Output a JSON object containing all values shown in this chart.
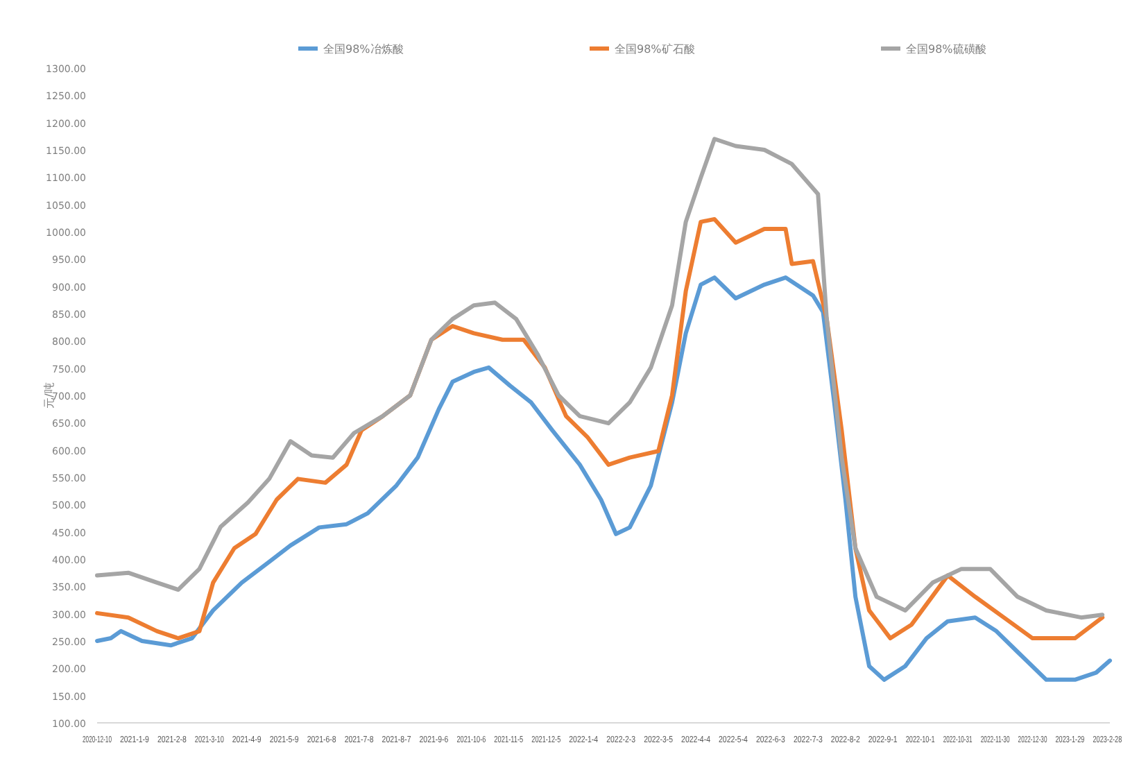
{
  "chart_data": {
    "type": "line",
    "ylabel": "元/吨",
    "legend": "top",
    "grid": false,
    "marker": "none",
    "line_style": "solid",
    "xlim": [
      "2020-12-10",
      "2023-03-02"
    ],
    "xticks": [
      {
        "value": "2020-12-10",
        "label": "2020-12-10"
      },
      {
        "value": "2021-01-09",
        "label": "2021-1-9"
      },
      {
        "value": "2021-02-08",
        "label": "2021-2-8"
      },
      {
        "value": "2021-03-10",
        "label": "2021-3-10"
      },
      {
        "value": "2021-04-09",
        "label": "2021-4-9"
      },
      {
        "value": "2021-05-09",
        "label": "2021-5-9"
      },
      {
        "value": "2021-06-08",
        "label": "2021-6-8"
      },
      {
        "value": "2021-07-08",
        "label": "2021-7-8"
      },
      {
        "value": "2021-08-07",
        "label": "2021-8-7"
      },
      {
        "value": "2021-09-06",
        "label": "2021-9-6"
      },
      {
        "value": "2021-10-06",
        "label": "2021-10-6"
      },
      {
        "value": "2021-11-05",
        "label": "2021-11-5"
      },
      {
        "value": "2021-12-05",
        "label": "2021-12-5"
      },
      {
        "value": "2022-01-04",
        "label": "2022-1-4"
      },
      {
        "value": "2022-02-03",
        "label": "2022-2-3"
      },
      {
        "value": "2022-03-05",
        "label": "2022-3-5"
      },
      {
        "value": "2022-04-04",
        "label": "2022-4-4"
      },
      {
        "value": "2022-05-04",
        "label": "2022-5-4"
      },
      {
        "value": "2022-06-03",
        "label": "2022-6-3"
      },
      {
        "value": "2022-07-03",
        "label": "2022-7-3"
      },
      {
        "value": "2022-08-02",
        "label": "2022-8-2"
      },
      {
        "value": "2022-09-01",
        "label": "2022-9-1"
      },
      {
        "value": "2022-10-01",
        "label": "2022-10-1"
      },
      {
        "value": "2022-10-31",
        "label": "2022-10-31"
      },
      {
        "value": "2022-11-30",
        "label": "2022-11-30"
      },
      {
        "value": "2022-12-30",
        "label": "2022-12-30"
      },
      {
        "value": "2023-01-29",
        "label": "2023-1-29"
      },
      {
        "value": "2023-02-28",
        "label": "2023-2-28"
      }
    ],
    "ylim": [
      100,
      1300
    ],
    "yticks": [
      {
        "value": 100,
        "label": "100.00"
      },
      {
        "value": 150,
        "label": "150.00"
      },
      {
        "value": 200,
        "label": "200.00"
      },
      {
        "value": 250,
        "label": "250.00"
      },
      {
        "value": 300,
        "label": "300.00"
      },
      {
        "value": 350,
        "label": "350.00"
      },
      {
        "value": 400,
        "label": "400.00"
      },
      {
        "value": 450,
        "label": "450.00"
      },
      {
        "value": 500,
        "label": "500.00"
      },
      {
        "value": 550,
        "label": "550.00"
      },
      {
        "value": 600,
        "label": "600.00"
      },
      {
        "value": 650,
        "label": "650.00"
      },
      {
        "value": 700,
        "label": "700.00"
      },
      {
        "value": 750,
        "label": "750.00"
      },
      {
        "value": 800,
        "label": "800.00"
      },
      {
        "value": 850,
        "label": "850.00"
      },
      {
        "value": 900,
        "label": "900.00"
      },
      {
        "value": 950,
        "label": "950.00"
      },
      {
        "value": 1000,
        "label": "1000.00"
      },
      {
        "value": 1050,
        "label": "1050.00"
      },
      {
        "value": 1100,
        "label": "1100.00"
      },
      {
        "value": 1150,
        "label": "1150.00"
      },
      {
        "value": 1200,
        "label": "1200.00"
      },
      {
        "value": 1250,
        "label": "1250.00"
      },
      {
        "value": 1300,
        "label": "1300.00"
      }
    ],
    "series": [
      {
        "name": "全国98%冶炼酸",
        "color": "#5b9bd5",
        "x": [
          "2020-12-10",
          "2020-12-21",
          "2020-12-29",
          "2021-01-15",
          "2021-02-07",
          "2021-02-24",
          "2021-03-13",
          "2021-04-05",
          "2021-04-27",
          "2021-05-14",
          "2021-06-06",
          "2021-06-28",
          "2021-07-15",
          "2021-08-07",
          "2021-08-24",
          "2021-09-10",
          "2021-09-21",
          "2021-10-08",
          "2021-10-20",
          "2021-11-06",
          "2021-11-23",
          "2021-12-10",
          "2022-01-01",
          "2022-01-18",
          "2022-01-30",
          "2022-02-10",
          "2022-02-27",
          "2022-03-16",
          "2022-03-27",
          "2022-04-08",
          "2022-04-19",
          "2022-05-06",
          "2022-05-29",
          "2022-06-15",
          "2022-07-07",
          "2022-07-15",
          "2022-07-24",
          "2022-08-02",
          "2022-08-10",
          "2022-08-21",
          "2022-09-02",
          "2022-09-19",
          "2022-10-06",
          "2022-10-23",
          "2022-11-14",
          "2022-12-01",
          "2022-12-18",
          "2023-01-10",
          "2023-02-02",
          "2023-02-19",
          "2023-03-02"
        ],
        "values": [
          250,
          255,
          268,
          250,
          242,
          255,
          306,
          357,
          395,
          425,
          458,
          464,
          484,
          535,
          586,
          675,
          725,
          743,
          751,
          718,
          687,
          636,
          573,
          509,
          446,
          458,
          535,
          687,
          814,
          903,
          916,
          878,
          903,
          916,
          883,
          853,
          687,
          509,
          331,
          204,
          179,
          204,
          255,
          286,
          293,
          268,
          230,
          179,
          179,
          192,
          214
        ]
      },
      {
        "name": "全国98%矿石酸",
        "color": "#ed7d31",
        "x": [
          "2020-12-10",
          "2021-01-04",
          "2021-01-27",
          "2021-02-13",
          "2021-03-02",
          "2021-03-13",
          "2021-03-30",
          "2021-04-16",
          "2021-05-03",
          "2021-05-20",
          "2021-06-11",
          "2021-06-28",
          "2021-07-10",
          "2021-07-27",
          "2021-08-18",
          "2021-09-04",
          "2021-09-21",
          "2021-10-08",
          "2021-10-31",
          "2021-11-17",
          "2021-12-04",
          "2021-12-21",
          "2022-01-07",
          "2022-01-24",
          "2022-02-10",
          "2022-03-05",
          "2022-03-16",
          "2022-03-27",
          "2022-04-08",
          "2022-04-19",
          "2022-05-06",
          "2022-05-29",
          "2022-06-15",
          "2022-06-20",
          "2022-07-07",
          "2022-07-18",
          "2022-07-30",
          "2022-08-10",
          "2022-08-21",
          "2022-09-07",
          "2022-09-24",
          "2022-10-23",
          "2022-11-14",
          "2022-12-07",
          "2022-12-30",
          "2023-02-02",
          "2023-02-24"
        ],
        "values": [
          301,
          293,
          268,
          255,
          268,
          357,
          420,
          446,
          509,
          547,
          540,
          573,
          636,
          662,
          700,
          802,
          827,
          814,
          802,
          802,
          751,
          662,
          624,
          573,
          586,
          598,
          700,
          891,
          1018,
          1023,
          980,
          1005,
          1005,
          941,
          946,
          840,
          636,
          420,
          306,
          255,
          280,
          370,
          331,
          293,
          255,
          255,
          293
        ]
      },
      {
        "name": "全国98%硫磺酸",
        "color": "#a5a5a5",
        "x": [
          "2020-12-10",
          "2021-01-04",
          "2021-01-27",
          "2021-02-13",
          "2021-03-02",
          "2021-03-19",
          "2021-04-10",
          "2021-04-27",
          "2021-05-14",
          "2021-05-31",
          "2021-06-17",
          "2021-07-04",
          "2021-07-27",
          "2021-08-18",
          "2021-09-04",
          "2021-09-21",
          "2021-10-08",
          "2021-10-25",
          "2021-11-11",
          "2021-11-28",
          "2021-12-15",
          "2022-01-01",
          "2022-01-24",
          "2022-02-10",
          "2022-02-27",
          "2022-03-16",
          "2022-03-27",
          "2022-04-08",
          "2022-04-19",
          "2022-05-06",
          "2022-05-29",
          "2022-06-20",
          "2022-07-11",
          "2022-07-18",
          "2022-07-30",
          "2022-08-10",
          "2022-08-27",
          "2022-09-19",
          "2022-10-11",
          "2022-11-03",
          "2022-11-26",
          "2022-12-18",
          "2023-01-10",
          "2023-02-07",
          "2023-02-24"
        ],
        "values": [
          370,
          375,
          357,
          344,
          382,
          459,
          504,
          547,
          616,
          590,
          586,
          631,
          662,
          700,
          802,
          840,
          865,
          870,
          840,
          776,
          700,
          662,
          649,
          687,
          751,
          865,
          1018,
          1099,
          1170,
          1157,
          1150,
          1124,
          1069,
          840,
          586,
          420,
          331,
          306,
          357,
          382,
          382,
          331,
          306,
          293,
          298
        ]
      }
    ]
  }
}
